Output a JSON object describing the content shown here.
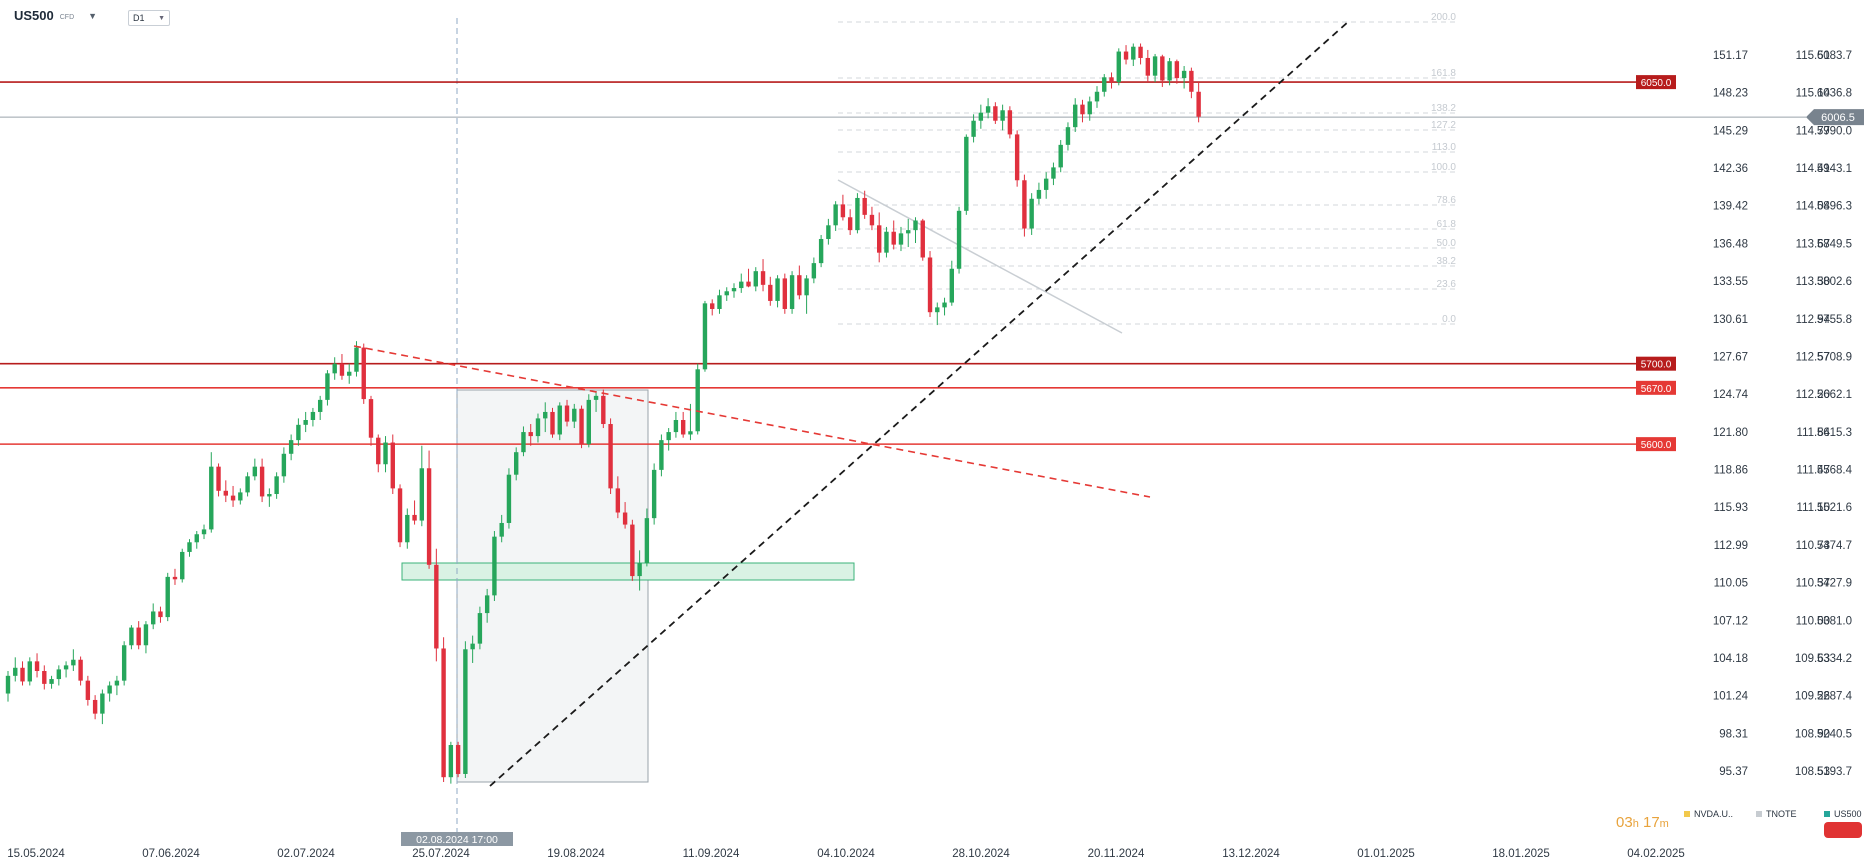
{
  "header": {
    "symbol": "US500",
    "symbol_sub": "CFD",
    "timeframe": "D1"
  },
  "legend": [
    {
      "name": "NVDA.U..",
      "color": "#f2c94c"
    },
    {
      "name": "TNOTE",
      "color": "#c7ccd1"
    },
    {
      "name": "US500",
      "color": "#26a69a"
    }
  ],
  "timer": {
    "hours": "03",
    "hours_unit": "h",
    "minutes": "17",
    "minutes_unit": "m"
  },
  "chart_data": {
    "type": "candlestick",
    "x_ticks": [
      "15.05.2024",
      "07.06.2024",
      "02.07.2024",
      "25.07.2024",
      "19.08.2024",
      "11.09.2024",
      "04.10.2024",
      "28.10.2024",
      "20.11.2024",
      "13.12.2024",
      "01.01.2025",
      "18.01.2025",
      "04.02.2025"
    ],
    "crosshair_date": "02.08.2024 17:00",
    "y_axes": [
      {
        "name": "NVDA.U..",
        "ticks": [
          "151.17",
          "148.23",
          "145.29",
          "142.36",
          "139.42",
          "136.48",
          "133.55",
          "130.61",
          "127.67",
          "124.74",
          "121.80",
          "118.86",
          "115.93",
          "112.99",
          "110.05",
          "107.12",
          "104.18",
          "101.24",
          "98.31",
          "95.37"
        ]
      },
      {
        "name": "TNOTE",
        "ticks": [
          "115.51",
          "115.14",
          "114.77",
          "114.41",
          "114.04",
          "113.67",
          "113.30",
          "112.94",
          "112.57",
          "112.20",
          "111.84",
          "111.47",
          "111.10",
          "110.73",
          "110.37",
          "110.00",
          "109.63",
          "109.26",
          "108.90",
          "108.53"
        ]
      },
      {
        "name": "US500",
        "ticks": [
          "6083.7",
          "6036.8",
          "5990.0",
          "5943.1",
          "5896.3",
          "5849.5",
          "5802.6",
          "5755.8",
          "5708.9",
          "5662.1",
          "5615.3",
          "5568.4",
          "5521.6",
          "5474.7",
          "5427.9",
          "5381.0",
          "5334.2",
          "5287.4",
          "5240.5",
          "5193.7"
        ]
      }
    ],
    "us500_ylim": [
      5193.7,
      6083.7
    ],
    "current_price": "6006.5",
    "levels": [
      {
        "label": "6050.0",
        "value": 6050.0,
        "color": "#b71c1c"
      },
      {
        "label": "5700.0",
        "value": 5700.0,
        "color": "#b71c1c"
      },
      {
        "label": "5670.0",
        "value": 5670.0,
        "color": "#e53935"
      },
      {
        "label": "5600.0",
        "value": 5600.0,
        "color": "#e53935"
      }
    ],
    "fib_levels": [
      "200.0",
      "161.8",
      "138.2",
      "127.2",
      "113.0",
      "100.0",
      "78.6",
      "61.8",
      "50.0",
      "38.2",
      "23.6",
      "0.0"
    ],
    "candles": [
      [
        5290,
        5318,
        5280,
        5312
      ],
      [
        5312,
        5335,
        5305,
        5322
      ],
      [
        5322,
        5330,
        5300,
        5305
      ],
      [
        5305,
        5335,
        5300,
        5330
      ],
      [
        5330,
        5340,
        5310,
        5318
      ],
      [
        5318,
        5325,
        5295,
        5302
      ],
      [
        5302,
        5312,
        5296,
        5308
      ],
      [
        5308,
        5325,
        5300,
        5320
      ],
      [
        5320,
        5330,
        5310,
        5325
      ],
      [
        5325,
        5345,
        5318,
        5332
      ],
      [
        5332,
        5336,
        5300,
        5306
      ],
      [
        5306,
        5312,
        5275,
        5282
      ],
      [
        5282,
        5288,
        5258,
        5265
      ],
      [
        5265,
        5295,
        5252,
        5290
      ],
      [
        5290,
        5305,
        5280,
        5300
      ],
      [
        5300,
        5312,
        5288,
        5306
      ],
      [
        5306,
        5355,
        5300,
        5350
      ],
      [
        5350,
        5375,
        5345,
        5372
      ],
      [
        5372,
        5380,
        5345,
        5350
      ],
      [
        5350,
        5380,
        5340,
        5376
      ],
      [
        5376,
        5402,
        5370,
        5392
      ],
      [
        5392,
        5398,
        5378,
        5385
      ],
      [
        5385,
        5440,
        5380,
        5435
      ],
      [
        5435,
        5445,
        5425,
        5432
      ],
      [
        5432,
        5470,
        5428,
        5466
      ],
      [
        5466,
        5482,
        5460,
        5478
      ],
      [
        5478,
        5492,
        5470,
        5488
      ],
      [
        5488,
        5500,
        5482,
        5494
      ],
      [
        5494,
        5590,
        5490,
        5572
      ],
      [
        5572,
        5576,
        5535,
        5542
      ],
      [
        5542,
        5555,
        5528,
        5536
      ],
      [
        5536,
        5548,
        5522,
        5530
      ],
      [
        5530,
        5545,
        5525,
        5540
      ],
      [
        5540,
        5565,
        5535,
        5560
      ],
      [
        5560,
        5582,
        5555,
        5572
      ],
      [
        5572,
        5582,
        5528,
        5535
      ],
      [
        5535,
        5545,
        5522,
        5538
      ],
      [
        5538,
        5565,
        5532,
        5560
      ],
      [
        5560,
        5596,
        5552,
        5588
      ],
      [
        5588,
        5612,
        5580,
        5605
      ],
      [
        5605,
        5632,
        5598,
        5624
      ],
      [
        5624,
        5640,
        5615,
        5630
      ],
      [
        5630,
        5645,
        5622,
        5640
      ],
      [
        5640,
        5660,
        5630,
        5655
      ],
      [
        5655,
        5692,
        5648,
        5688
      ],
      [
        5688,
        5708,
        5680,
        5700
      ],
      [
        5700,
        5712,
        5680,
        5685
      ],
      [
        5685,
        5700,
        5675,
        5690
      ],
      [
        5690,
        5728,
        5684,
        5720
      ],
      [
        5720,
        5725,
        5650,
        5656
      ],
      [
        5656,
        5660,
        5598,
        5608
      ],
      [
        5608,
        5612,
        5565,
        5575
      ],
      [
        5575,
        5610,
        5565,
        5602
      ],
      [
        5602,
        5612,
        5538,
        5545
      ],
      [
        5545,
        5550,
        5472,
        5478
      ],
      [
        5478,
        5520,
        5470,
        5512
      ],
      [
        5512,
        5530,
        5500,
        5505
      ],
      [
        5505,
        5598,
        5498,
        5570
      ],
      [
        5570,
        5592,
        5445,
        5450
      ],
      [
        5450,
        5470,
        5330,
        5346
      ],
      [
        5346,
        5360,
        5180,
        5186
      ],
      [
        5186,
        5230,
        5178,
        5226
      ],
      [
        5226,
        5230,
        5186,
        5190
      ],
      [
        5190,
        5355,
        5185,
        5345
      ],
      [
        5345,
        5362,
        5328,
        5352
      ],
      [
        5352,
        5398,
        5345,
        5390
      ],
      [
        5390,
        5420,
        5378,
        5412
      ],
      [
        5412,
        5492,
        5405,
        5485
      ],
      [
        5485,
        5512,
        5478,
        5502
      ],
      [
        5502,
        5570,
        5495,
        5562
      ],
      [
        5562,
        5596,
        5555,
        5590
      ],
      [
        5590,
        5622,
        5585,
        5615
      ],
      [
        5615,
        5625,
        5598,
        5610
      ],
      [
        5610,
        5638,
        5602,
        5632
      ],
      [
        5632,
        5652,
        5615,
        5640
      ],
      [
        5640,
        5645,
        5608,
        5612
      ],
      [
        5612,
        5652,
        5605,
        5648
      ],
      [
        5648,
        5655,
        5622,
        5628
      ],
      [
        5628,
        5650,
        5620,
        5644
      ],
      [
        5644,
        5648,
        5595,
        5600
      ],
      [
        5600,
        5662,
        5596,
        5655
      ],
      [
        5655,
        5666,
        5640,
        5660
      ],
      [
        5660,
        5668,
        5620,
        5625
      ],
      [
        5625,
        5632,
        5538,
        5545
      ],
      [
        5545,
        5560,
        5508,
        5515
      ],
      [
        5515,
        5528,
        5495,
        5500
      ],
      [
        5500,
        5506,
        5430,
        5436
      ],
      [
        5436,
        5468,
        5418,
        5452
      ],
      [
        5452,
        5520,
        5448,
        5508
      ],
      [
        5508,
        5576,
        5500,
        5568
      ],
      [
        5568,
        5612,
        5560,
        5605
      ],
      [
        5605,
        5620,
        5592,
        5615
      ],
      [
        5615,
        5640,
        5608,
        5630
      ],
      [
        5630,
        5640,
        5608,
        5612
      ],
      [
        5612,
        5650,
        5605,
        5616
      ],
      [
        5616,
        5700,
        5612,
        5693
      ],
      [
        5693,
        5778,
        5690,
        5775
      ],
      [
        5775,
        5780,
        5760,
        5768
      ],
      [
        5768,
        5792,
        5762,
        5785
      ],
      [
        5785,
        5795,
        5778,
        5790
      ],
      [
        5790,
        5800,
        5782,
        5794
      ],
      [
        5794,
        5812,
        5788,
        5802
      ],
      [
        5802,
        5818,
        5795,
        5796
      ],
      [
        5796,
        5820,
        5790,
        5815
      ],
      [
        5815,
        5830,
        5790,
        5798
      ],
      [
        5798,
        5808,
        5772,
        5778
      ],
      [
        5778,
        5810,
        5770,
        5806
      ],
      [
        5806,
        5812,
        5762,
        5768
      ],
      [
        5768,
        5815,
        5762,
        5810
      ],
      [
        5810,
        5822,
        5780,
        5785
      ],
      [
        5785,
        5810,
        5762,
        5806
      ],
      [
        5806,
        5832,
        5800,
        5825
      ],
      [
        5825,
        5860,
        5820,
        5855
      ],
      [
        5855,
        5880,
        5848,
        5872
      ],
      [
        5872,
        5902,
        5865,
        5898
      ],
      [
        5898,
        5910,
        5878,
        5882
      ],
      [
        5882,
        5892,
        5860,
        5866
      ],
      [
        5866,
        5912,
        5862,
        5906
      ],
      [
        5906,
        5915,
        5880,
        5885
      ],
      [
        5885,
        5895,
        5866,
        5872
      ],
      [
        5872,
        5888,
        5826,
        5838
      ],
      [
        5838,
        5870,
        5832,
        5864
      ],
      [
        5864,
        5878,
        5842,
        5848
      ],
      [
        5848,
        5870,
        5840,
        5862
      ],
      [
        5862,
        5880,
        5845,
        5866
      ],
      [
        5866,
        5882,
        5850,
        5878
      ],
      [
        5878,
        5880,
        5828,
        5832
      ],
      [
        5832,
        5840,
        5758,
        5764
      ],
      [
        5764,
        5776,
        5748,
        5770
      ],
      [
        5770,
        5782,
        5760,
        5776
      ],
      [
        5776,
        5828,
        5772,
        5818
      ],
      [
        5818,
        5895,
        5812,
        5890
      ],
      [
        5890,
        5985,
        5885,
        5982
      ],
      [
        5982,
        6010,
        5975,
        6002
      ],
      [
        6002,
        6022,
        5992,
        6012
      ],
      [
        6012,
        6030,
        6005,
        6020
      ],
      [
        6020,
        6025,
        5998,
        6002
      ],
      [
        6002,
        6022,
        5990,
        6015
      ],
      [
        6015,
        6020,
        5980,
        5985
      ],
      [
        5985,
        5990,
        5920,
        5928
      ],
      [
        5928,
        5935,
        5858,
        5868
      ],
      [
        5868,
        5912,
        5860,
        5905
      ],
      [
        5905,
        5925,
        5898,
        5916
      ],
      [
        5916,
        5938,
        5905,
        5930
      ],
      [
        5930,
        5950,
        5922,
        5944
      ],
      [
        5944,
        5978,
        5938,
        5972
      ],
      [
        5972,
        6000,
        5965,
        5994
      ],
      [
        5994,
        6030,
        5988,
        6022
      ],
      [
        6022,
        6028,
        6000,
        6010
      ],
      [
        6010,
        6032,
        6002,
        6026
      ],
      [
        6026,
        6045,
        6018,
        6038
      ],
      [
        6038,
        6060,
        6032,
        6056
      ],
      [
        6056,
        6062,
        6042,
        6050
      ],
      [
        6050,
        6092,
        6046,
        6088
      ],
      [
        6088,
        6096,
        6072,
        6078
      ],
      [
        6078,
        6098,
        6070,
        6094
      ],
      [
        6094,
        6098,
        6072,
        6080
      ],
      [
        6080,
        6090,
        6050,
        6058
      ],
      [
        6058,
        6085,
        6050,
        6082
      ],
      [
        6082,
        6084,
        6044,
        6052
      ],
      [
        6052,
        6080,
        6046,
        6076
      ],
      [
        6076,
        6078,
        6048,
        6055
      ],
      [
        6055,
        6070,
        6042,
        6064
      ],
      [
        6064,
        6068,
        6030,
        6038
      ],
      [
        6038,
        6050,
        6000,
        6007
      ]
    ]
  }
}
